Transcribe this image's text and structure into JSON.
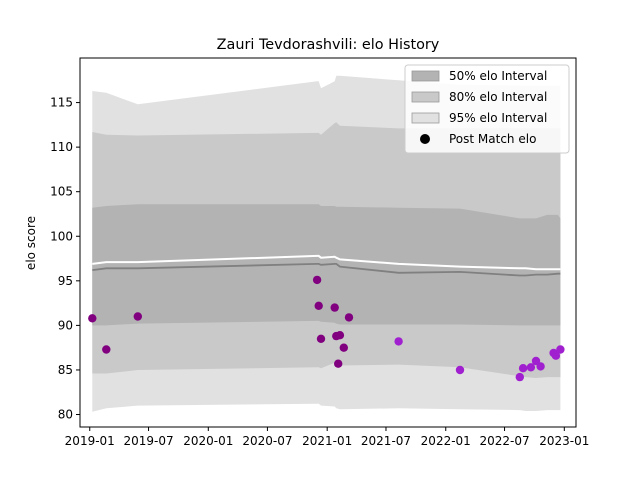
{
  "chart_data": {
    "type": "line",
    "title": "Zauri Tevdorashvili: elo History",
    "xlabel": "",
    "ylabel": "elo score",
    "x_ticks": [
      "2019-01",
      "2019-07",
      "2020-01",
      "2020-07",
      "2021-01",
      "2021-07",
      "2022-01",
      "2022-07",
      "2023-01"
    ],
    "y_ticks": [
      80,
      85,
      90,
      95,
      100,
      105,
      110,
      115
    ],
    "xlim": [
      "2018-12-02",
      "2023-02-06"
    ],
    "ylim": [
      78.6,
      120.0
    ],
    "legend_position": "top-right",
    "colors": {
      "band_50": "#b3b3b3",
      "band_80": "#c9c9c9",
      "band_95": "#e1e1e1",
      "median_line": "#808080",
      "mean_line": "#ffffff",
      "point_early": "#800080",
      "point_late": "#a020d0"
    },
    "legend": [
      {
        "key": "band_50",
        "label": "50% elo Interval",
        "kind": "patch"
      },
      {
        "key": "band_80",
        "label": "80% elo Interval",
        "kind": "patch"
      },
      {
        "key": "band_95",
        "label": "95% elo Interval",
        "kind": "patch"
      },
      {
        "key": "points",
        "label": "Post Match elo",
        "kind": "marker"
      }
    ],
    "bands": {
      "dates": [
        "2019-01-09",
        "2019-02-21",
        "2019-05-29",
        "2020-12-01",
        "2020-12-06",
        "2020-12-13",
        "2021-01-24",
        "2021-01-29",
        "2021-02-09",
        "2021-08-09",
        "2022-02-14",
        "2022-08-17",
        "2022-09-04",
        "2022-10-06",
        "2022-11-09",
        "2022-12-12",
        "2022-12-20"
      ],
      "median": [
        96.2,
        96.4,
        96.4,
        96.9,
        96.9,
        96.8,
        96.9,
        96.9,
        96.6,
        95.9,
        96.0,
        95.6,
        95.6,
        95.7,
        95.7,
        95.8,
        95.8
      ],
      "mean": [
        96.9,
        97.1,
        97.1,
        97.8,
        97.8,
        97.6,
        97.7,
        97.6,
        97.4,
        96.9,
        96.6,
        96.4,
        96.4,
        96.3,
        96.3,
        96.3,
        96.3
      ],
      "p50": [
        [
          90.0,
          103.2
        ],
        [
          90.0,
          103.4
        ],
        [
          90.2,
          103.6
        ],
        [
          90.5,
          103.6
        ],
        [
          90.5,
          103.6
        ],
        [
          90.4,
          103.4
        ],
        [
          90.3,
          103.4
        ],
        [
          90.2,
          103.3
        ],
        [
          90.1,
          103.3
        ],
        [
          90.1,
          103.2
        ],
        [
          90.1,
          103.1
        ],
        [
          90.0,
          102.0
        ],
        [
          90.0,
          102.0
        ],
        [
          90.0,
          102.0
        ],
        [
          90.0,
          102.4
        ],
        [
          90.0,
          102.4
        ],
        [
          90.0,
          102.0
        ]
      ],
      "p80": [
        [
          84.6,
          111.7
        ],
        [
          84.6,
          111.4
        ],
        [
          85.0,
          111.3
        ],
        [
          85.3,
          111.6
        ],
        [
          85.3,
          111.6
        ],
        [
          85.2,
          111.4
        ],
        [
          85.8,
          112.7
        ],
        [
          85.6,
          112.8
        ],
        [
          85.5,
          112.4
        ],
        [
          85.6,
          112.1
        ],
        [
          85.3,
          112.1
        ],
        [
          84.3,
          112.1
        ],
        [
          84.2,
          112.1
        ],
        [
          84.1,
          112.1
        ],
        [
          84.2,
          112.1
        ],
        [
          84.2,
          112.1
        ],
        [
          84.2,
          112.1
        ]
      ],
      "p95": [
        [
          80.3,
          116.3
        ],
        [
          80.7,
          116.1
        ],
        [
          81.0,
          114.8
        ],
        [
          81.2,
          117.4
        ],
        [
          81.2,
          117.4
        ],
        [
          81.0,
          116.6
        ],
        [
          80.9,
          117.4
        ],
        [
          80.7,
          118.0
        ],
        [
          80.6,
          118.0
        ],
        [
          80.7,
          117.5
        ],
        [
          80.6,
          117.0
        ],
        [
          80.5,
          116.9
        ],
        [
          80.4,
          116.9
        ],
        [
          80.4,
          116.9
        ],
        [
          80.5,
          116.9
        ],
        [
          80.5,
          116.9
        ],
        [
          80.5,
          116.9
        ]
      ]
    },
    "points": [
      {
        "x": "2019-01-09",
        "y": 90.8
      },
      {
        "x": "2019-02-21",
        "y": 87.3
      },
      {
        "x": "2019-05-29",
        "y": 91.0
      },
      {
        "x": "2020-12-01",
        "y": 95.1
      },
      {
        "x": "2020-12-06",
        "y": 92.2
      },
      {
        "x": "2020-12-13",
        "y": 88.5
      },
      {
        "x": "2021-01-24",
        "y": 92.0
      },
      {
        "x": "2021-01-29",
        "y": 88.8
      },
      {
        "x": "2021-02-04",
        "y": 85.7
      },
      {
        "x": "2021-02-09",
        "y": 88.9
      },
      {
        "x": "2021-02-21",
        "y": 87.5
      },
      {
        "x": "2021-03-09",
        "y": 90.9
      },
      {
        "x": "2021-08-09",
        "y": 88.2
      },
      {
        "x": "2022-02-14",
        "y": 85.0
      },
      {
        "x": "2022-08-17",
        "y": 84.2
      },
      {
        "x": "2022-08-27",
        "y": 85.2
      },
      {
        "x": "2022-09-20",
        "y": 85.3
      },
      {
        "x": "2022-10-06",
        "y": 86.0
      },
      {
        "x": "2022-10-20",
        "y": 85.4
      },
      {
        "x": "2022-11-29",
        "y": 86.9
      },
      {
        "x": "2022-12-06",
        "y": 86.6
      },
      {
        "x": "2022-12-20",
        "y": 87.3
      }
    ]
  }
}
